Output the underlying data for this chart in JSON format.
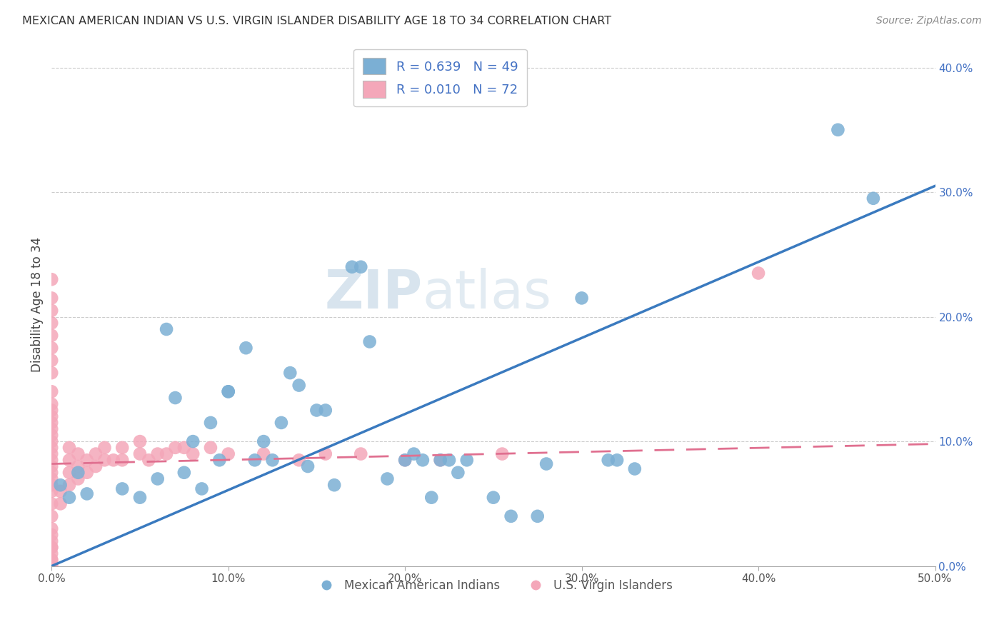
{
  "title": "MEXICAN AMERICAN INDIAN VS U.S. VIRGIN ISLANDER DISABILITY AGE 18 TO 34 CORRELATION CHART",
  "source": "Source: ZipAtlas.com",
  "ylabel": "Disability Age 18 to 34",
  "xlim": [
    0.0,
    0.5
  ],
  "ylim": [
    0.0,
    0.42
  ],
  "xticks": [
    0.0,
    0.1,
    0.2,
    0.3,
    0.4,
    0.5
  ],
  "xticklabels": [
    "0.0%",
    "10.0%",
    "20.0%",
    "30.0%",
    "40.0%",
    "50.0%"
  ],
  "yticks_right": [
    0.0,
    0.1,
    0.2,
    0.3,
    0.4
  ],
  "yticklabels_right": [
    "0.0%",
    "10.0%",
    "20.0%",
    "30.0%",
    "40.0%"
  ],
  "legend_blue_R": "R = 0.639",
  "legend_blue_N": "N = 49",
  "legend_pink_R": "R = 0.010",
  "legend_pink_N": "N = 72",
  "blue_color": "#7bafd4",
  "pink_color": "#f4a7b9",
  "line_blue": "#3a7abf",
  "line_pink": "#e07090",
  "watermark_color": "#c8d8e8",
  "blue_line_x": [
    0.0,
    0.5
  ],
  "blue_line_y": [
    0.0,
    0.305
  ],
  "pink_line_x": [
    0.0,
    0.5
  ],
  "pink_line_y": [
    0.082,
    0.098
  ],
  "blue_scatter_x": [
    0.005,
    0.01,
    0.015,
    0.02,
    0.04,
    0.05,
    0.06,
    0.065,
    0.07,
    0.075,
    0.08,
    0.085,
    0.09,
    0.095,
    0.1,
    0.1,
    0.11,
    0.115,
    0.12,
    0.125,
    0.13,
    0.135,
    0.14,
    0.145,
    0.15,
    0.155,
    0.16,
    0.17,
    0.175,
    0.18,
    0.19,
    0.2,
    0.205,
    0.21,
    0.215,
    0.22,
    0.225,
    0.23,
    0.235,
    0.25,
    0.26,
    0.275,
    0.28,
    0.3,
    0.315,
    0.32,
    0.33,
    0.445,
    0.465
  ],
  "blue_scatter_y": [
    0.065,
    0.055,
    0.075,
    0.058,
    0.062,
    0.055,
    0.07,
    0.19,
    0.135,
    0.075,
    0.1,
    0.062,
    0.115,
    0.085,
    0.14,
    0.14,
    0.175,
    0.085,
    0.1,
    0.085,
    0.115,
    0.155,
    0.145,
    0.08,
    0.125,
    0.125,
    0.065,
    0.24,
    0.24,
    0.18,
    0.07,
    0.085,
    0.09,
    0.085,
    0.055,
    0.085,
    0.085,
    0.075,
    0.085,
    0.055,
    0.04,
    0.04,
    0.082,
    0.215,
    0.085,
    0.085,
    0.078,
    0.35,
    0.295
  ],
  "pink_scatter_x": [
    0.0,
    0.0,
    0.0,
    0.0,
    0.0,
    0.0,
    0.0,
    0.0,
    0.0,
    0.0,
    0.0,
    0.0,
    0.0,
    0.0,
    0.0,
    0.0,
    0.0,
    0.0,
    0.0,
    0.0,
    0.0,
    0.0,
    0.0,
    0.0,
    0.0,
    0.0,
    0.0,
    0.0,
    0.0,
    0.0,
    0.0,
    0.0,
    0.0,
    0.0,
    0.0,
    0.0,
    0.005,
    0.005,
    0.01,
    0.01,
    0.01,
    0.01,
    0.015,
    0.015,
    0.015,
    0.02,
    0.02,
    0.025,
    0.025,
    0.03,
    0.03,
    0.035,
    0.04,
    0.04,
    0.05,
    0.05,
    0.055,
    0.06,
    0.065,
    0.07,
    0.075,
    0.08,
    0.09,
    0.1,
    0.12,
    0.14,
    0.155,
    0.175,
    0.2,
    0.22,
    0.255,
    0.4
  ],
  "pink_scatter_y": [
    0.0,
    0.005,
    0.01,
    0.015,
    0.02,
    0.025,
    0.03,
    0.04,
    0.05,
    0.06,
    0.065,
    0.07,
    0.075,
    0.08,
    0.085,
    0.09,
    0.095,
    0.1,
    0.105,
    0.11,
    0.115,
    0.12,
    0.125,
    0.13,
    0.14,
    0.155,
    0.165,
    0.175,
    0.185,
    0.195,
    0.205,
    0.215,
    0.23,
    0.0,
    0.005,
    0.015,
    0.05,
    0.06,
    0.065,
    0.075,
    0.085,
    0.095,
    0.07,
    0.08,
    0.09,
    0.075,
    0.085,
    0.08,
    0.09,
    0.085,
    0.095,
    0.085,
    0.085,
    0.095,
    0.09,
    0.1,
    0.085,
    0.09,
    0.09,
    0.095,
    0.095,
    0.09,
    0.095,
    0.09,
    0.09,
    0.085,
    0.09,
    0.09,
    0.085,
    0.085,
    0.09,
    0.235
  ]
}
